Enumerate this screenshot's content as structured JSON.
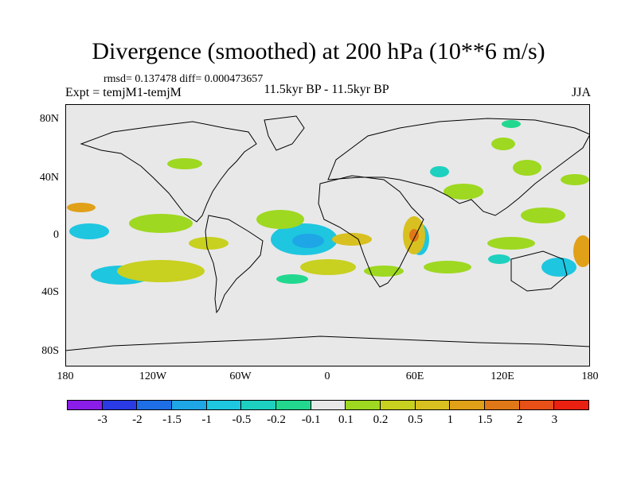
{
  "title": "Divergence (smoothed) at 200 hPa (10**6 m/s)",
  "stats": "rmsd= 0.137478 diff= 0.000473657",
  "experiment": "Expt = temjM1-temjM",
  "period": "11.5kyr BP - 11.5kyr BP",
  "season": "JJA",
  "lat_labels": [
    "80N",
    "40N",
    "0",
    "40S",
    "80S"
  ],
  "lon_labels": [
    "180",
    "120W",
    "60W",
    "0",
    "60E",
    "120E",
    "180"
  ],
  "colorbar": {
    "colors": [
      "#8a1de8",
      "#2a3be6",
      "#1e6fe6",
      "#1ea6e6",
      "#1ec6e0",
      "#1ed0c0",
      "#22d88f",
      "#e8e8e8",
      "#9ed820",
      "#c8d020",
      "#d8c020",
      "#e0a018",
      "#e07818",
      "#e85018",
      "#ea2010"
    ],
    "labels": [
      "-3",
      "-2",
      "-1.5",
      "-1",
      "-0.5",
      "-0.2",
      "-0.1",
      "0.1",
      "0.2",
      "0.5",
      "1",
      "1.5",
      "2",
      "3"
    ]
  },
  "map": {
    "background": "#e8e8e8",
    "description_icon": "world-map-icon"
  }
}
